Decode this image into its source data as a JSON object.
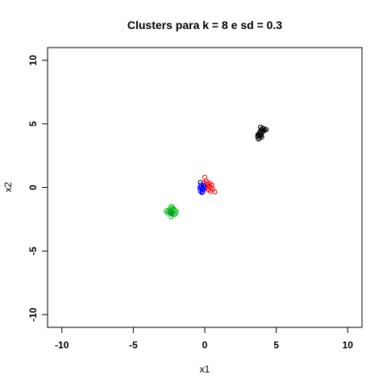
{
  "chart_data": {
    "type": "scatter",
    "title": "Clusters para k =  8  e sd =  0.3",
    "xlabel": "x1",
    "ylabel": "x2",
    "xlim": [
      -11,
      11
    ],
    "ylim": [
      -11,
      11
    ],
    "xticks": [
      -10,
      -5,
      0,
      5,
      10
    ],
    "yticks": [
      -10,
      -5,
      0,
      5,
      10
    ],
    "xtick_labels": [
      "-10",
      "-5",
      "0",
      "5",
      "10"
    ],
    "ytick_labels": [
      "-10",
      "-5",
      "0",
      "5",
      "10"
    ],
    "marker": "open-circle",
    "grid": false,
    "legend": false,
    "series": [
      {
        "color": "#000000",
        "points": [
          [
            3.75,
            3.8
          ],
          [
            3.82,
            3.9
          ],
          [
            3.7,
            4.0
          ],
          [
            3.85,
            4.05
          ],
          [
            3.95,
            4.1
          ],
          [
            3.78,
            4.2
          ],
          [
            3.9,
            4.25
          ],
          [
            4.0,
            4.3
          ],
          [
            3.88,
            4.4
          ],
          [
            4.1,
            4.45
          ],
          [
            4.2,
            4.5
          ],
          [
            3.95,
            4.55
          ],
          [
            4.05,
            4.65
          ],
          [
            3.9,
            4.75
          ],
          [
            4.15,
            4.6
          ],
          [
            3.8,
            4.1
          ],
          [
            3.72,
            4.15
          ],
          [
            3.98,
            3.95
          ],
          [
            4.3,
            4.55
          ],
          [
            3.85,
            4.35
          ],
          [
            -0.3,
            0.4
          ]
        ]
      },
      {
        "color": "#ff0000",
        "points": [
          [
            0.0,
            0.8
          ],
          [
            0.1,
            0.5
          ],
          [
            0.2,
            0.35
          ],
          [
            0.35,
            0.3
          ],
          [
            0.3,
            0.1
          ],
          [
            0.45,
            0.0
          ],
          [
            0.55,
            -0.15
          ],
          [
            0.7,
            -0.35
          ],
          [
            0.15,
            0.2
          ],
          [
            0.05,
            0.05
          ],
          [
            0.25,
            -0.2
          ],
          [
            0.4,
            -0.3
          ],
          [
            -0.05,
            0.35
          ],
          [
            0.5,
            0.2
          ],
          [
            0.1,
            -0.05
          ]
        ]
      },
      {
        "color": "#0000ff",
        "points": [
          [
            -0.3,
            0.1
          ],
          [
            -0.2,
            0.0
          ],
          [
            -0.25,
            -0.1
          ],
          [
            -0.15,
            -0.2
          ],
          [
            -0.3,
            -0.3
          ],
          [
            -0.2,
            -0.4
          ],
          [
            -0.1,
            -0.15
          ],
          [
            -0.05,
            0.05
          ],
          [
            -0.25,
            0.2
          ],
          [
            -0.15,
            -0.35
          ],
          [
            -0.35,
            -0.05
          ],
          [
            -0.1,
            0.15
          ],
          [
            -2.4,
            -1.9
          ],
          [
            -2.25,
            -1.95
          ],
          [
            -2.35,
            -2.05
          ]
        ]
      },
      {
        "color": "#00bb00",
        "points": [
          [
            -2.3,
            -1.5
          ],
          [
            -2.4,
            -1.6
          ],
          [
            -2.2,
            -1.65
          ],
          [
            -2.7,
            -1.85
          ],
          [
            -2.55,
            -1.8
          ],
          [
            -2.1,
            -1.8
          ],
          [
            -2.0,
            -1.9
          ],
          [
            -2.45,
            -2.0
          ],
          [
            -2.3,
            -2.1
          ],
          [
            -2.15,
            -2.15
          ],
          [
            -2.35,
            -2.3
          ],
          [
            -2.6,
            -2.0
          ],
          [
            -2.25,
            -1.7
          ],
          [
            -2.05,
            -2.05
          ]
        ]
      }
    ]
  }
}
